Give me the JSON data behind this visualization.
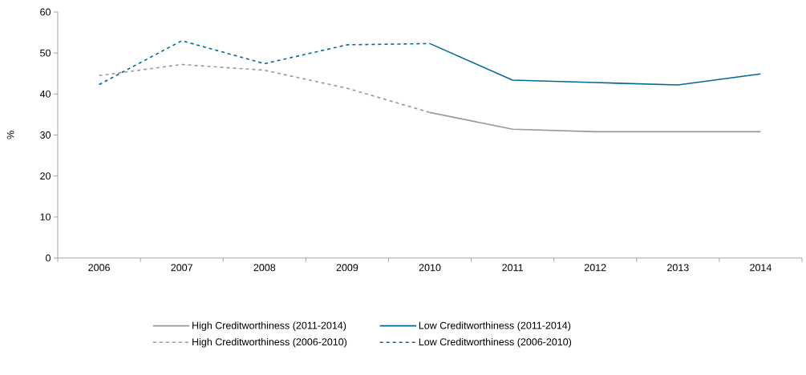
{
  "chart_data": {
    "type": "line",
    "ylabel": "%",
    "categories": [
      "2006",
      "2007",
      "2008",
      "2009",
      "2010",
      "2011",
      "2012",
      "2013",
      "2014"
    ],
    "series": [
      {
        "name": "High Creditworthiness (2011-2014)",
        "color": "#999999",
        "line_style": "solid",
        "values": [
          null,
          null,
          null,
          null,
          35.5,
          31.4,
          30.8,
          30.8,
          30.8
        ]
      },
      {
        "name": "Low Creditworthiness (2011-2014)",
        "color": "#006a94",
        "line_style": "solid",
        "values": [
          null,
          null,
          null,
          null,
          52.3,
          43.4,
          42.8,
          42.2,
          44.9
        ]
      },
      {
        "name": "High Creditworthiness (2006-2010)",
        "color": "#999999",
        "line_style": "dashed",
        "values": [
          44.5,
          47.2,
          45.8,
          41.4,
          35.5,
          null,
          null,
          null,
          null
        ]
      },
      {
        "name": "Low Creditworthiness (2006-2010)",
        "color": "#006a94",
        "line_style": "dashed",
        "values": [
          42.3,
          53.0,
          47.4,
          52.0,
          52.3,
          null,
          null,
          null,
          null
        ]
      }
    ],
    "ylim": [
      0,
      60
    ],
    "yticks": [
      0,
      10,
      20,
      30,
      40,
      50,
      60
    ],
    "grid": false,
    "legend": "bottom",
    "marker": "none"
  }
}
